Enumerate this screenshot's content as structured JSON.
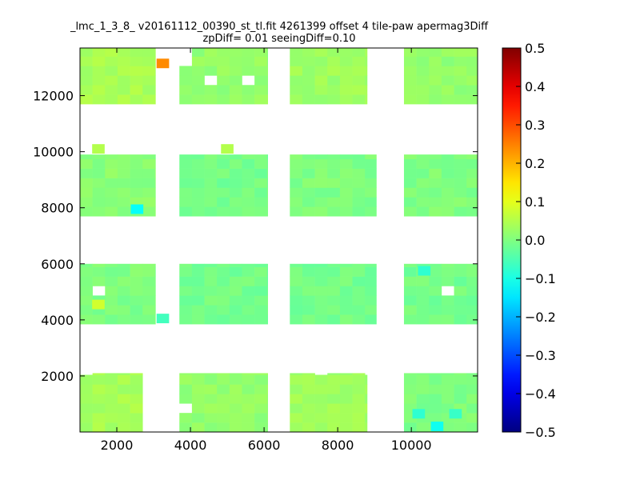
{
  "chart_data": {
    "type": "heatmap",
    "title": "_lmc_1_3_8_ v20161112_00390_st_tl.fit 4261399 offset 4 tile-paw apermag3Diff",
    "subtitle": "zpDiff= 0.01 seeingDiff=0.10",
    "xlabel": "",
    "ylabel": "",
    "xlim": [
      1000,
      11800
    ],
    "ylim": [
      0,
      13700
    ],
    "x_ticks": [
      2000,
      4000,
      6000,
      8000,
      10000
    ],
    "y_ticks": [
      2000,
      4000,
      6000,
      8000,
      10000,
      12000
    ],
    "grid": false,
    "cell_size": 340,
    "colorbar": {
      "colormap": "jet",
      "vmin": -0.5,
      "vmax": 0.5,
      "ticks": [
        -0.5,
        -0.4,
        -0.3,
        -0.2,
        -0.1,
        0.0,
        0.1,
        0.2,
        0.3,
        0.4,
        0.5
      ],
      "tick_labels": [
        "−0.5",
        "−0.4",
        "−0.3",
        "−0.2",
        "−0.1",
        "0.0",
        "0.1",
        "0.2",
        "0.3",
        "0.4",
        "0.5"
      ]
    },
    "blocks": [
      {
        "x0": 1000,
        "x1": 2700,
        "y0": 0,
        "y1": 2100,
        "v": 0.04
      },
      {
        "x0": 3700,
        "x1": 6100,
        "y0": 0,
        "y1": 2100,
        "v": 0.02
      },
      {
        "x0": 6700,
        "x1": 8800,
        "y0": 0,
        "y1": 2100,
        "v": 0.03
      },
      {
        "x0": 9800,
        "x1": 11800,
        "y0": 0,
        "y1": 2100,
        "v": 0.0
      },
      {
        "x0": 1000,
        "x1": 3050,
        "y0": 3850,
        "y1": 6000,
        "v": 0.0
      },
      {
        "x0": 3700,
        "x1": 6100,
        "y0": 3850,
        "y1": 6000,
        "v": -0.01
      },
      {
        "x0": 6700,
        "x1": 9050,
        "y0": 3850,
        "y1": 6000,
        "v": -0.01
      },
      {
        "x0": 9800,
        "x1": 11800,
        "y0": 3850,
        "y1": 6000,
        "v": -0.01
      },
      {
        "x0": 1000,
        "x1": 3050,
        "y0": 7700,
        "y1": 9900,
        "v": 0.01
      },
      {
        "x0": 3700,
        "x1": 6100,
        "y0": 7700,
        "y1": 9900,
        "v": -0.01
      },
      {
        "x0": 6700,
        "x1": 9050,
        "y0": 7700,
        "y1": 9900,
        "v": 0.0
      },
      {
        "x0": 9800,
        "x1": 11800,
        "y0": 7700,
        "y1": 9900,
        "v": 0.0
      },
      {
        "x0": 1000,
        "x1": 3050,
        "y0": 11700,
        "y1": 13700,
        "v": 0.04
      },
      {
        "x0": 3700,
        "x1": 6100,
        "y0": 11700,
        "y1": 13700,
        "v": 0.02
      },
      {
        "x0": 6700,
        "x1": 8800,
        "y0": 11700,
        "y1": 13700,
        "v": 0.03
      },
      {
        "x0": 9800,
        "x1": 11800,
        "y0": 11700,
        "y1": 13700,
        "v": 0.02
      }
    ],
    "notable_cells": [
      {
        "x": 3250,
        "y": 13150,
        "v": 0.24
      },
      {
        "x": 1500,
        "y": 4550,
        "v": 0.08
      },
      {
        "x": 1500,
        "y": 10100,
        "v": 0.05
      },
      {
        "x": 5000,
        "y": 10100,
        "v": 0.05
      },
      {
        "x": 2550,
        "y": 7950,
        "v": -0.12
      },
      {
        "x": 3250,
        "y": 4050,
        "v": -0.06
      },
      {
        "x": 10350,
        "y": 5750,
        "v": -0.08
      },
      {
        "x": 10700,
        "y": 200,
        "v": -0.11
      },
      {
        "x": 10200,
        "y": 650,
        "v": -0.08
      },
      {
        "x": 11200,
        "y": 650,
        "v": -0.07
      }
    ]
  }
}
